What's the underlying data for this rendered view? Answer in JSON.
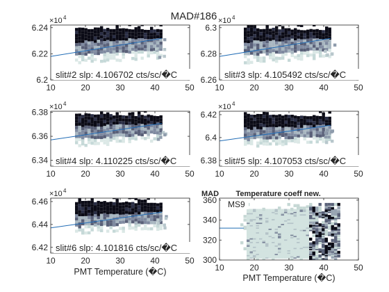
{
  "figure": {
    "title": "MAD#186"
  },
  "chart_data": [
    {
      "type": "heatmap",
      "xlabel": "",
      "ylabel": "",
      "xlim": [
        10,
        50
      ],
      "ylim": [
        62000,
        62420
      ],
      "x_ticks": [
        10,
        20,
        30,
        40,
        50
      ],
      "x_tick_labels": [
        "10",
        "20",
        "30",
        "40",
        "50"
      ],
      "y_ticks": [
        62000,
        62200,
        62400
      ],
      "y_tick_labels": [
        "6.2",
        "6.22",
        "6.24"
      ],
      "y_exponent": "×10",
      "y_exponent_power": "4",
      "annotation": "slit#2 slp: 4.106702 cts/sc/�C",
      "fit_line": {
        "x": [
          10,
          42
        ],
        "y": [
          62180,
          62318
        ]
      },
      "density": {
        "x_range": [
          17,
          42
        ],
        "dense_top": [
          62405,
          62390
        ],
        "dense_bottom": [
          62300,
          62330
        ],
        "mid_bottom": [
          62200,
          62240
        ],
        "low_bottom": [
          62140,
          62180
        ]
      }
    },
    {
      "type": "heatmap",
      "xlabel": "",
      "ylabel": "",
      "xlim": [
        10,
        50
      ],
      "ylim": [
        62600,
        63020
      ],
      "x_ticks": [
        10,
        20,
        30,
        40,
        50
      ],
      "x_tick_labels": [
        "10",
        "20",
        "30",
        "40",
        "50"
      ],
      "y_ticks": [
        62600,
        62800,
        63000
      ],
      "y_tick_labels": [
        "6.26",
        "6.28",
        "6.3"
      ],
      "y_exponent": "×10",
      "y_exponent_power": "4",
      "annotation": "slit#3 slp: 4.105492 cts/sc/�C",
      "fit_line": {
        "x": [
          10,
          42
        ],
        "y": [
          62780,
          62918
        ]
      },
      "density": {
        "x_range": [
          17,
          42
        ],
        "dense_top": [
          63005,
          62990
        ],
        "dense_bottom": [
          62900,
          62930
        ],
        "mid_bottom": [
          62800,
          62840
        ],
        "low_bottom": [
          62740,
          62780
        ]
      }
    },
    {
      "type": "heatmap",
      "xlabel": "",
      "ylabel": "",
      "xlim": [
        10,
        50
      ],
      "ylim": [
        63350,
        63810
      ],
      "x_ticks": [
        10,
        20,
        30,
        40,
        50
      ],
      "x_tick_labels": [
        "10",
        "20",
        "30",
        "40",
        "50"
      ],
      "y_ticks": [
        63400,
        63600,
        63800
      ],
      "y_tick_labels": [
        "6.34",
        "6.36",
        "6.38"
      ],
      "y_exponent": "×10",
      "y_exponent_power": "4",
      "annotation": "slit#4 slp: 4.110225 cts/sc/�C",
      "fit_line": {
        "x": [
          10,
          42
        ],
        "y": [
          63570,
          63708
        ]
      },
      "density": {
        "x_range": [
          17,
          42
        ],
        "dense_top": [
          63795,
          63780
        ],
        "dense_bottom": [
          63690,
          63720
        ],
        "mid_bottom": [
          63590,
          63630
        ],
        "low_bottom": [
          63530,
          63570
        ]
      }
    },
    {
      "type": "heatmap",
      "xlabel": "",
      "ylabel": "",
      "xlim": [
        10,
        50
      ],
      "ylim": [
        63750,
        64230
      ],
      "x_ticks": [
        10,
        20,
        30,
        40,
        50
      ],
      "x_tick_labels": [
        "10",
        "20",
        "30",
        "40",
        "50"
      ],
      "y_ticks": [
        63800,
        64000,
        64200
      ],
      "y_tick_labels": [
        "6.38",
        "6.4",
        "6.42"
      ],
      "y_exponent": "×10",
      "y_exponent_power": "4",
      "annotation": "slit#5 slp: 4.107053 cts/sc/�C",
      "fit_line": {
        "x": [
          10,
          42
        ],
        "y": [
          63970,
          64108
        ]
      },
      "density": {
        "x_range": [
          17,
          42
        ],
        "dense_top": [
          64210,
          64195
        ],
        "dense_bottom": [
          64090,
          64120
        ],
        "mid_bottom": [
          63990,
          64030
        ],
        "low_bottom": [
          63930,
          63970
        ]
      }
    },
    {
      "type": "heatmap",
      "xlabel": "PMT Temperature (�C)",
      "ylabel": "",
      "xlim": [
        10,
        50
      ],
      "ylim": [
        64150,
        64630
      ],
      "x_ticks": [
        10,
        20,
        30,
        40,
        50
      ],
      "x_tick_labels": [
        "10",
        "20",
        "30",
        "40",
        "50"
      ],
      "y_ticks": [
        64200,
        64400,
        64600
      ],
      "y_tick_labels": [
        "6.42",
        "6.44",
        "6.46"
      ],
      "y_exponent": "×10",
      "y_exponent_power": "4",
      "annotation": "slit#6 slp: 4.101816 cts/sc/�C",
      "fit_line": {
        "x": [
          10,
          42
        ],
        "y": [
          64370,
          64508
        ]
      },
      "density": {
        "x_range": [
          17,
          42
        ],
        "dense_top": [
          64610,
          64595
        ],
        "dense_bottom": [
          64490,
          64520
        ],
        "mid_bottom": [
          64390,
          64430
        ],
        "low_bottom": [
          64330,
          64370
        ]
      }
    },
    {
      "type": "heatmap",
      "title": "MAD        Temperature coeff new.",
      "xlabel": "PMT Temperature (�C)",
      "ylabel": "",
      "xlim": [
        10,
        50
      ],
      "ylim": [
        300,
        362
      ],
      "x_ticks": [
        10,
        20,
        30,
        40,
        50
      ],
      "x_tick_labels": [
        "10",
        "20",
        "30",
        "40",
        "50"
      ],
      "y_ticks": [
        300,
        320,
        340,
        360
      ],
      "y_tick_labels": [
        "300",
        "320",
        "340",
        "360"
      ],
      "annotation": "MS9",
      "fit_line": {
        "x": [
          10,
          17
        ],
        "y": [
          332,
          332
        ]
      },
      "density": {
        "x_range": [
          16,
          44
        ],
        "core_x": [
          17.5,
          35
        ],
        "y_range": [
          302,
          358
        ]
      }
    }
  ]
}
